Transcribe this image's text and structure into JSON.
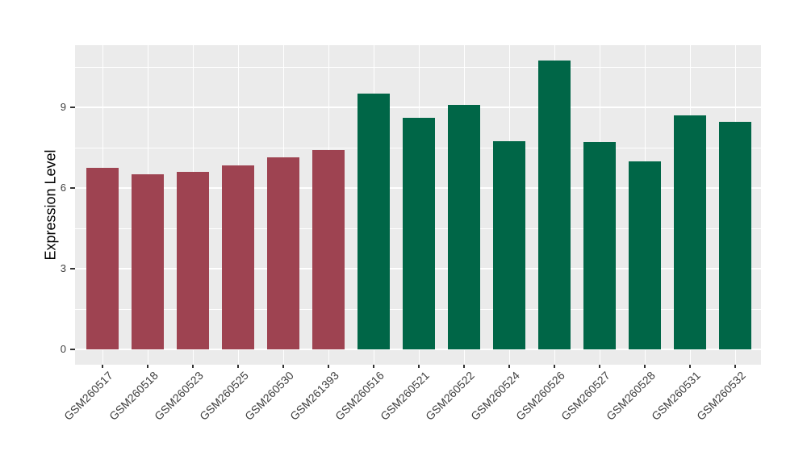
{
  "figure": {
    "background": "#FFFFFF",
    "panel_background": "#EBEBEB",
    "gridline_color": "#FFFFFF",
    "axis_text_color": "#404040",
    "axis_title_color": "#000000",
    "tick_color": "#333333"
  },
  "chart_data": {
    "type": "bar",
    "title": "",
    "xlabel": "",
    "ylabel": "Expression Level",
    "legend": "none",
    "grid": true,
    "ylim": [
      -0.57,
      11.33
    ],
    "yticks": [
      0,
      3,
      6,
      9
    ],
    "yminor": [
      1.5,
      4.5,
      7.5,
      10.5
    ],
    "group_colors": {
      "maroon": "#9E4351",
      "green": "#006647"
    },
    "categories": [
      "GSM260517",
      "GSM260518",
      "GSM260523",
      "GSM260525",
      "GSM260530",
      "GSM261393",
      "GSM260516",
      "GSM260521",
      "GSM260522",
      "GSM260524",
      "GSM260526",
      "GSM260527",
      "GSM260528",
      "GSM260531",
      "GSM260532"
    ],
    "values": [
      6.75,
      6.5,
      6.6,
      6.85,
      7.15,
      7.4,
      9.5,
      8.6,
      9.1,
      7.75,
      10.75,
      7.7,
      7.0,
      8.7,
      8.45
    ],
    "bar_groups": [
      "maroon",
      "maroon",
      "maroon",
      "maroon",
      "maroon",
      "maroon",
      "green",
      "green",
      "green",
      "green",
      "green",
      "green",
      "green",
      "green",
      "green"
    ]
  }
}
